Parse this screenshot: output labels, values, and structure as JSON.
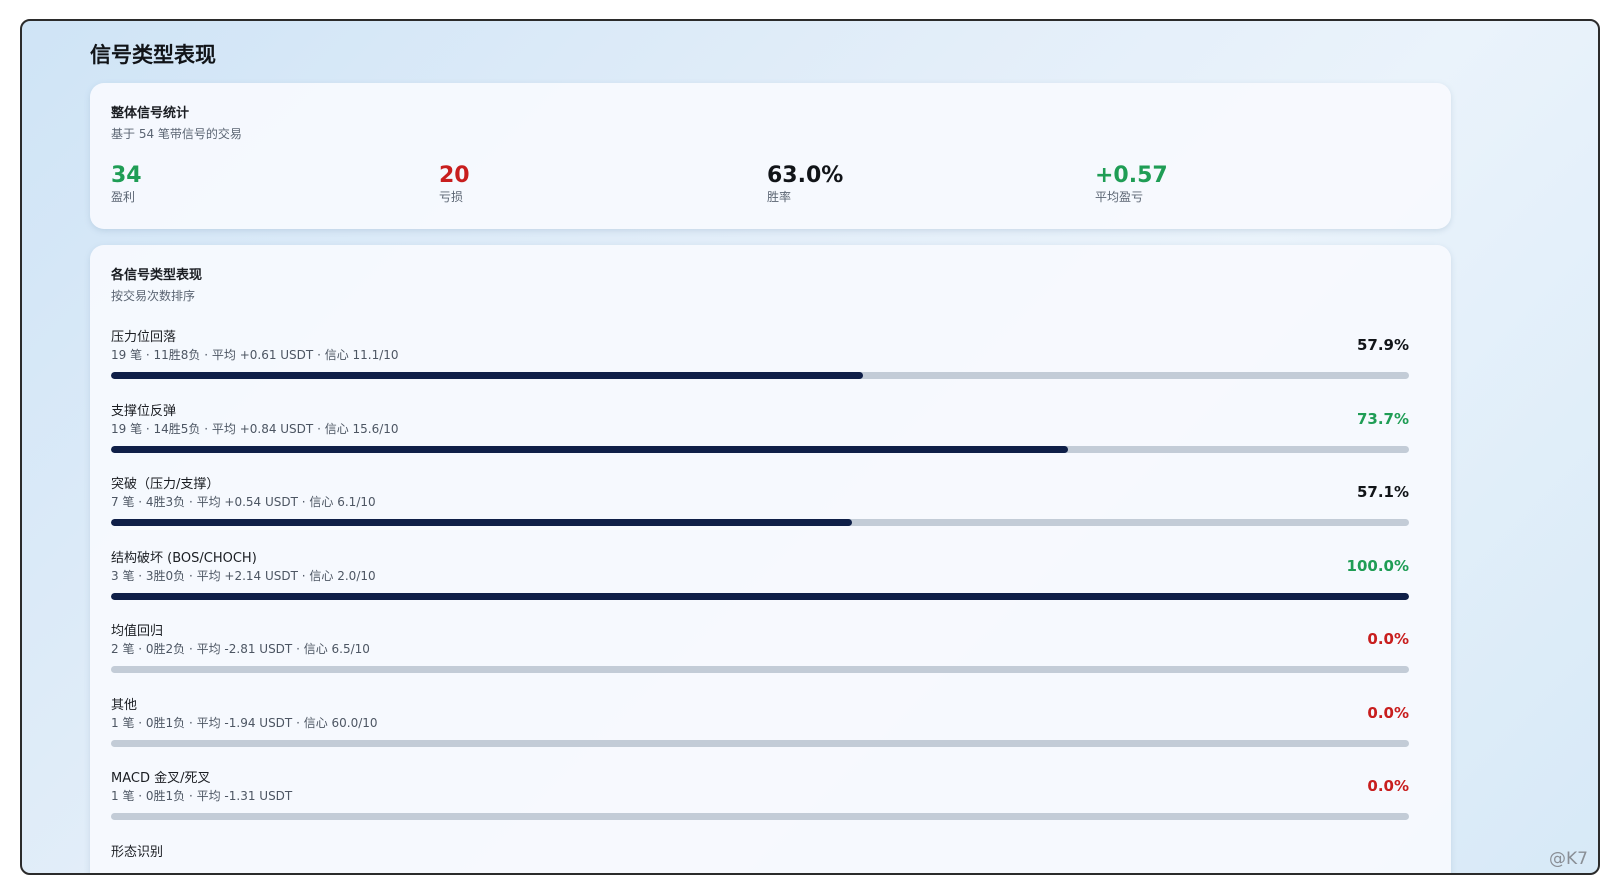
{
  "page": {
    "title": "信号类型表现"
  },
  "summary": {
    "title": "整体信号统计",
    "subtitle": "基于 54 笔带信号的交易",
    "stats": [
      {
        "value": "34",
        "label": "盈利",
        "color": "#1f9d55"
      },
      {
        "value": "20",
        "label": "亏损",
        "color": "#c81e1e"
      },
      {
        "value": "63.0%",
        "label": "胜率",
        "color": "#111418"
      },
      {
        "value": "+0.57",
        "label": "平均盈亏",
        "color": "#1f9d55"
      }
    ]
  },
  "types": {
    "title": "各信号类型表现",
    "subtitle": "按交易次数排序",
    "items": [
      {
        "name": "压力位回落",
        "meta": "19 笔 · 11胜8负 · 平均 +0.61 USDT · 信心 11.1/10",
        "rate": "57.9%",
        "win_fraction": 0.579,
        "rate_color": "#111418"
      },
      {
        "name": "支撑位反弹",
        "meta": "19 笔 · 14胜5负 · 平均 +0.84 USDT · 信心 15.6/10",
        "rate": "73.7%",
        "win_fraction": 0.737,
        "rate_color": "#1f9d55"
      },
      {
        "name": "突破（压力/支撑）",
        "meta": "7 笔 · 4胜3负 · 平均 +0.54 USDT · 信心 6.1/10",
        "rate": "57.1%",
        "win_fraction": 0.571,
        "rate_color": "#111418"
      },
      {
        "name": "结构破坏 (BOS/CHOCH)",
        "meta": "3 笔 · 3胜0负 · 平均 +2.14 USDT · 信心 2.0/10",
        "rate": "100.0%",
        "win_fraction": 1.0,
        "rate_color": "#1f9d55"
      },
      {
        "name": "均值回归",
        "meta": "2 笔 · 0胜2负 · 平均 -2.81 USDT · 信心 6.5/10",
        "rate": "0.0%",
        "win_fraction": 0.0,
        "rate_color": "#c81e1e"
      },
      {
        "name": "其他",
        "meta": "1 笔 · 0胜1负 · 平均 -1.94 USDT · 信心 60.0/10",
        "rate": "0.0%",
        "win_fraction": 0.0,
        "rate_color": "#c81e1e"
      },
      {
        "name": "MACD 金叉/死叉",
        "meta": "1 笔 · 0胜1负 · 平均 -1.31 USDT",
        "rate": "0.0%",
        "win_fraction": 0.0,
        "rate_color": "#c81e1e"
      },
      {
        "name": "形态识别",
        "meta": "",
        "rate": "",
        "win_fraction": 0.0,
        "rate_color": "#111418"
      }
    ]
  },
  "watermark": "@K7"
}
